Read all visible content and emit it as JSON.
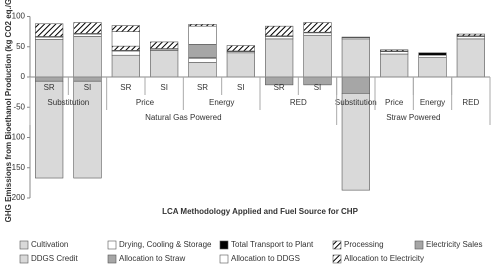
{
  "chart_data": {
    "type": "stacked_bar",
    "y_label": "GHG Emissions from Bioethanol Production (kg CO2 eq./GJ)",
    "x_label": "LCA Methodology Applied and Fuel Source for CHP",
    "categories": [
      "SR",
      "SI",
      "SR",
      "SI",
      "SR",
      "SI",
      "SR",
      "SI",
      null,
      null,
      null,
      null
    ],
    "categories_level2": [
      "Substitution",
      "Substitution",
      "Price",
      "Price",
      "Energy",
      "Energy",
      "RED",
      "RED",
      "Substitution",
      "Price",
      "Energy",
      "RED"
    ],
    "categories_level3": [
      "Natural Gas Powered",
      "Natural Gas Powered",
      "Natural Gas Powered",
      "Natural Gas Powered",
      "Natural Gas Powered",
      "Natural Gas Powered",
      "Natural Gas Powered",
      "Natural Gas Powered",
      "Straw Powered",
      "Straw Powered",
      "Straw Powered",
      "Straw Powered"
    ],
    "series": [
      {
        "name": "Cultivation",
        "color": "#d9d9d9",
        "values": [
          62,
          67,
          36,
          44,
          24,
          40,
          63,
          69,
          63,
          38,
          32,
          63
        ]
      },
      {
        "name": "Drying, Cooling & Storage",
        "color": "#ffffff",
        "values": [
          4,
          4,
          7,
          2,
          7,
          2,
          4,
          4,
          2,
          4,
          4,
          4
        ]
      },
      {
        "name": "Total Transport to Plant",
        "color": "#000000",
        "values": [
          1,
          1,
          1,
          1,
          1,
          1,
          1,
          1,
          1,
          1,
          4,
          1
        ]
      },
      {
        "name": "Processing",
        "color": "#ffffff",
        "pattern": "hatch",
        "values": [
          21,
          18,
          7,
          null,
          null,
          null,
          16,
          16,
          null,
          2,
          null,
          3
        ]
      },
      {
        "name": "Electricity Sales",
        "color": "#a6a6a6",
        "values": [
          -7,
          -7,
          null,
          null,
          null,
          null,
          -13,
          -13,
          -27,
          null,
          null,
          null
        ]
      },
      {
        "name": "DDGS Credit",
        "color": "#d9d9d9",
        "values": [
          -160,
          -160,
          null,
          null,
          null,
          null,
          null,
          null,
          -160,
          null,
          null,
          null
        ]
      },
      {
        "name": "Allocation to Straw",
        "color": "#a6a6a6",
        "values": [
          null,
          null,
          null,
          null,
          22,
          null,
          null,
          null,
          null,
          null,
          null,
          null
        ]
      },
      {
        "name": "Allocation to DDGS",
        "color": "#ffffff",
        "values": [
          null,
          null,
          24,
          null,
          30,
          null,
          null,
          null,
          null,
          null,
          null,
          null
        ]
      },
      {
        "name": "Allocation to Electricity",
        "color": "#ffffff",
        "pattern": "hatch",
        "values": [
          null,
          null,
          10,
          11,
          3,
          9,
          null,
          null,
          null,
          null,
          null,
          null
        ]
      }
    ],
    "ylim": [
      -200,
      100
    ],
    "yticks": [
      -200,
      -150,
      -100,
      -50,
      0,
      50,
      100
    ],
    "grid": false
  }
}
